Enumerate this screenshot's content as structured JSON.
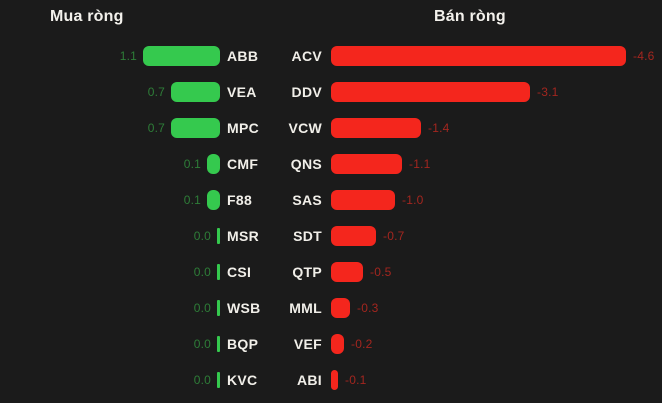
{
  "page": {
    "background": "#1b1b1b",
    "text_color": "#f1efe9"
  },
  "chart_data": {
    "type": "bar",
    "orientation": "horizontal",
    "grid": false,
    "legend": false,
    "panels": [
      {
        "title": "Mua ròng",
        "role": "net-buy",
        "bar_color": "#35c94e",
        "value_text_color": "#2e7d38",
        "axis_max": 1.1,
        "bar_align": "right",
        "rows": [
          {
            "ticker": "ABB",
            "value": 1.1,
            "label": "1.1"
          },
          {
            "ticker": "VEA",
            "value": 0.7,
            "label": "0.7"
          },
          {
            "ticker": "MPC",
            "value": 0.7,
            "label": "0.7"
          },
          {
            "ticker": "CMF",
            "value": 0.1,
            "label": "0.1"
          },
          {
            "ticker": "F88",
            "value": 0.1,
            "label": "0.1"
          },
          {
            "ticker": "MSR",
            "value": 0.0,
            "label": "0.0"
          },
          {
            "ticker": "CSI",
            "value": 0.0,
            "label": "0.0"
          },
          {
            "ticker": "WSB",
            "value": 0.0,
            "label": "0.0"
          },
          {
            "ticker": "BQP",
            "value": 0.0,
            "label": "0.0"
          },
          {
            "ticker": "KVC",
            "value": 0.0,
            "label": "0.0"
          }
        ]
      },
      {
        "title": "Bán ròng",
        "role": "net-sell",
        "bar_color": "#f4261d",
        "value_text_color": "#a3261f",
        "axis_max": 4.6,
        "bar_align": "left",
        "rows": [
          {
            "ticker": "ACV",
            "value": -4.6,
            "label": "-4.6"
          },
          {
            "ticker": "DDV",
            "value": -3.1,
            "label": "-3.1"
          },
          {
            "ticker": "VCW",
            "value": -1.4,
            "label": "-1.4"
          },
          {
            "ticker": "QNS",
            "value": -1.1,
            "label": "-1.1"
          },
          {
            "ticker": "SAS",
            "value": -1.0,
            "label": "-1.0"
          },
          {
            "ticker": "SDT",
            "value": -0.7,
            "label": "-0.7"
          },
          {
            "ticker": "QTP",
            "value": -0.5,
            "label": "-0.5"
          },
          {
            "ticker": "MML",
            "value": -0.3,
            "label": "-0.3"
          },
          {
            "ticker": "VEF",
            "value": -0.2,
            "label": "-0.2"
          },
          {
            "ticker": "ABI",
            "value": -0.1,
            "label": "-0.1"
          }
        ]
      }
    ]
  }
}
